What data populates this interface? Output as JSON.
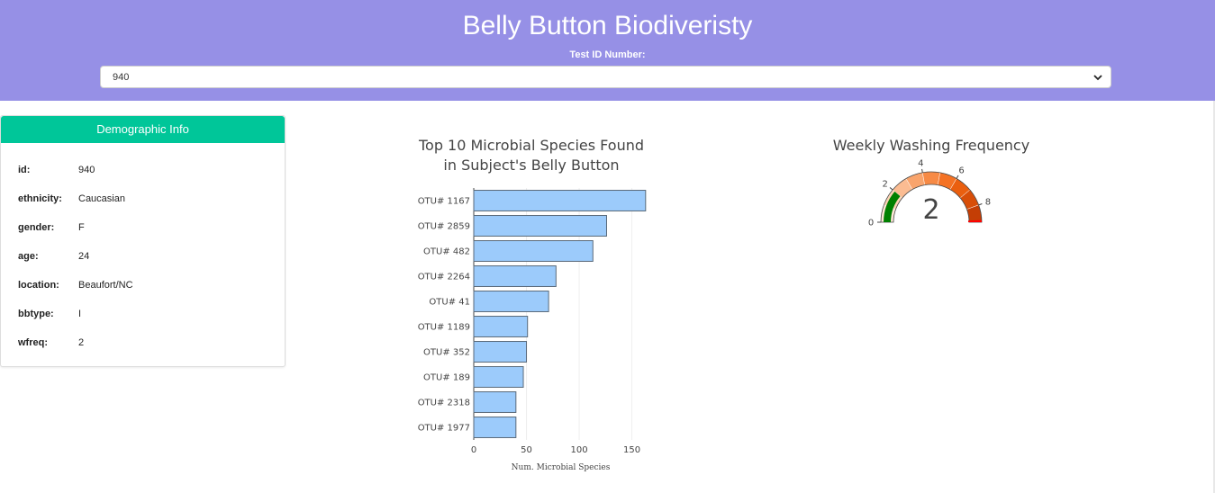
{
  "header": {
    "title": "Belly Button Biodiveristy",
    "select_label": "Test ID Number:",
    "selected_id": "940"
  },
  "demographics": {
    "title": "Demographic Info",
    "rows": [
      {
        "key": "id:",
        "value": "940"
      },
      {
        "key": "ethnicity:",
        "value": "Caucasian"
      },
      {
        "key": "gender:",
        "value": "F"
      },
      {
        "key": "age:",
        "value": "24"
      },
      {
        "key": "location:",
        "value": "Beaufort/NC"
      },
      {
        "key": "bbtype:",
        "value": "I"
      },
      {
        "key": "wfreq:",
        "value": "2"
      }
    ]
  },
  "chart_data": [
    {
      "type": "bar",
      "orientation": "horizontal",
      "title": [
        "Top 10 Microbial Species Found",
        "in Subject's Belly Button"
      ],
      "xlabel": "Num. Microbial Species",
      "xlim": [
        0,
        170
      ],
      "xticks": [
        0,
        50,
        100,
        150
      ],
      "grid": true,
      "bar_color": "#9ccbfb",
      "bar_stroke": "#5a6a7a",
      "categories": [
        "OTU# 1167",
        "OTU# 2859",
        "OTU# 482",
        "OTU# 2264",
        "OTU# 41",
        "OTU# 1189",
        "OTU# 352",
        "OTU# 189",
        "OTU# 2318",
        "OTU# 1977"
      ],
      "values": [
        163,
        126,
        113,
        78,
        71,
        51,
        50,
        47,
        40,
        40
      ]
    },
    {
      "type": "gauge",
      "title": "Weekly Washing Frequency",
      "value": 2,
      "range": [
        0,
        9
      ],
      "ticks": [
        0,
        2,
        4,
        6,
        8
      ],
      "steps": [
        {
          "range": [
            0,
            1
          ],
          "color": "#fde7d6"
        },
        {
          "range": [
            1,
            2
          ],
          "color": "#fcd3b5"
        },
        {
          "range": [
            2,
            3
          ],
          "color": "#fbbc92"
        },
        {
          "range": [
            3,
            4
          ],
          "color": "#f9a46c"
        },
        {
          "range": [
            4,
            5
          ],
          "color": "#f78a45"
        },
        {
          "range": [
            5,
            6
          ],
          "color": "#f47224"
        },
        {
          "range": [
            6,
            7
          ],
          "color": "#ea5f0f"
        },
        {
          "range": [
            7,
            8
          ],
          "color": "#d84e08"
        },
        {
          "range": [
            8,
            9
          ],
          "color": "#c43e05"
        }
      ],
      "bar_color": "#008000",
      "threshold_color": "#ff0000"
    }
  ]
}
